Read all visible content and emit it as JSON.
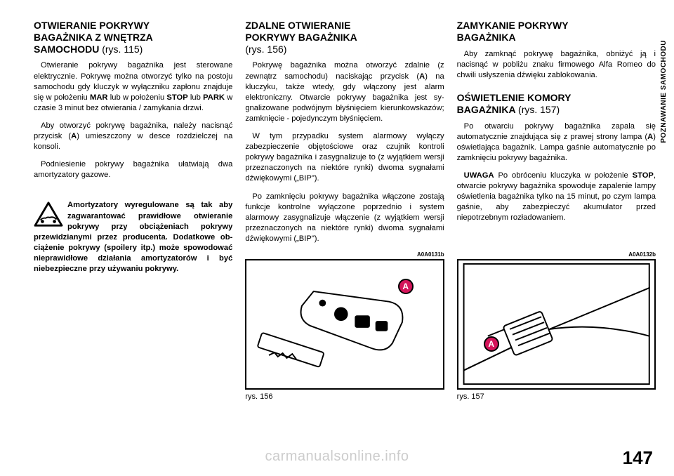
{
  "sideTab": "POZNAWANIE SAMOCHODU",
  "pageNumber": "147",
  "watermark": "carmanualsonline.info",
  "col1": {
    "h1_l1": "OTWIERANIE POKRYWY",
    "h1_l2": "BAGAŻNIKA Z WNĘTRZA",
    "h1_l3": "SAMOCHODU",
    "h1_ref": "(rys. 115)",
    "p1": "Otwieranie pokrywy bagażnika jest ste­rowane elektrycznie. Pokrywę można otworzyć tylko na postoju samochodu gdy kluczyk w wyłączniku zapłonu znaj­duje się w położeniu <b>MAR</b> lub w poło­żeniu <b>STOP</b> lub <b>PARK</b> w czasie 3 mi­nut bez otwierania / zamykania drzwi.",
    "p2": "Aby otworzyć pokrywę bagażnika, nale­ży nacisnąć przycisk (<b>A</b>) umieszczony w desce rozdzielczej na konsoli.",
    "p3": "Podniesienie pokrywy bagażnika uła­twiają dwa amortyzatory gazowe.",
    "warn": "Amortyzatory wyregulo­wane są tak aby zagwa­rantować prawidłowe ot­wieranie pokrywy przy obciąże­niach pokrywy przewidzianymi przez producenta. Dodatkowe ob­ciążenie pokrywy (spoilery itp.) może spowodować nieprawidłowe działania amortyzatorów i być niebezpieczne przy używaniu po­krywy."
  },
  "col2": {
    "h1_l1": "ZDALNE OTWIERANIE",
    "h1_l2": "POKRYWY BAGAŻNIKA",
    "h1_ref": "(rys. 156)",
    "p1": "Pokrywę bagażnika można otworzyć zdalnie (z zewnątrz samochodu) naciska­jąc przycisk (<b>A</b>) na kluczyku, także wte­dy, gdy włączony jest alarm elektronicz­ny. Otwarcie pokrywy bagażnika jest sy­gnalizowane podwójnym błyśnięciem kierunkowskazów; zamknięcie - pojedyn­czym błyśnięciem.",
    "p2": "W tym przypadku system alarmowy wy­łączy zabezpieczenie objętościowe oraz czujnik kontroli pokrywy bagażnika i za­sygnalizuje to (z wyjątkiem wersji prze­znaczonych na niektóre rynki) dwoma sygnałami dźwiękowymi („BIP\").",
    "p3": "Po zamknięciu pokrywy bagażnika włą­czone zostają funkcje kontrolne wyłączone poprzednio i system alarmowy zasygnali­zuje włączenie (z wyjątkiem wersji prze­znaczonych na niektóre rynki) dwoma sy­gnałami dźwiękowymi („BIP\").",
    "figCode": "A0A0131b",
    "figCaption": "rys. 156",
    "marker": "A"
  },
  "col3": {
    "h1_l1": "ZAMYKANIE POKRYWY",
    "h1_l2": "BAGAŻNIKA",
    "p1": "Aby zamknąć pokrywę bagażnika, ob­niżyć ją i nacisnąć w pobliżu znaku fir­mowego Alfa Romeo do chwili usłyszenia dźwięku zablokowania.",
    "h2_l1": "OŚWIETLENIE KOMORY",
    "h2_l2": "BAGAŻNIKA",
    "h2_ref": "(rys. 157)",
    "p2": "Po otwarciu pokrywy bagażnika zapala się automatycznie znajdująca się z pra­wej strony lampa (<b>A</b>) oświetlająca ba­gażnik. Lampa gaśnie automatycznie po zamknięciu pokrywy bagażnika.",
    "p3": "<b>UWAGA</b> Po obróceniu kluczyka w po­łożenie <b>STOP</b>, otwarcie pokrywy bagaż­nika spowoduje zapalenie lampy oświe­tlenia bagażnika tylko na 15 minut, po czym lampa gaśnie, aby zabezpieczyć akumulator przed niepotrzebnym rozła­dowaniem.",
    "figCode": "A0A0132b",
    "figCaption": "rys. 157",
    "marker": "A"
  },
  "figHeight": 186
}
